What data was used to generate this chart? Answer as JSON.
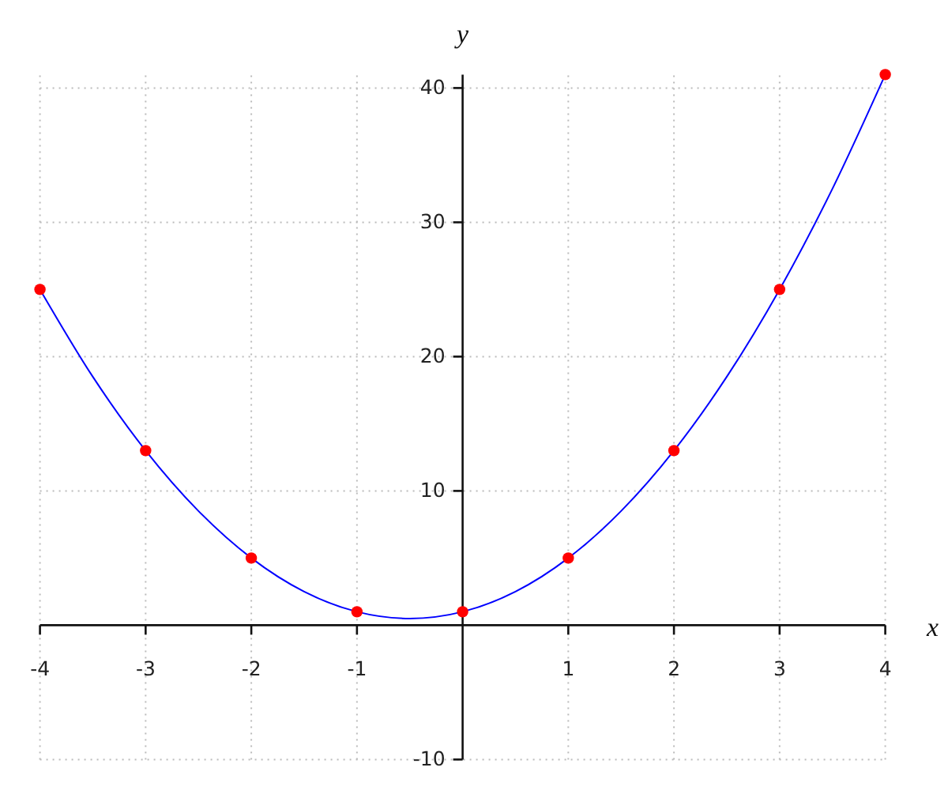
{
  "chart_data": {
    "type": "line",
    "xlabel": "x",
    "ylabel": "y",
    "xlim": [
      -4,
      4
    ],
    "ylim": [
      -10,
      41
    ],
    "xticks": [
      -4,
      -3,
      -2,
      -1,
      1,
      2,
      3,
      4
    ],
    "yticks": [
      -10,
      10,
      20,
      30,
      40
    ],
    "grid": true,
    "series": [
      {
        "color": "#0000ff",
        "x": [
          -4,
          -3.5,
          -3,
          -2.5,
          -2,
          -1.5,
          -1,
          -0.5,
          0,
          0.5,
          1,
          1.5,
          2,
          2.5,
          3,
          3.5,
          4
        ],
        "values": [
          25,
          18.5,
          13,
          8.5,
          5,
          2.5,
          1,
          0.5,
          1,
          2.5,
          5,
          8.5,
          13,
          18.5,
          25,
          32.5,
          41
        ]
      },
      {
        "type": "scatter",
        "color": "#ff0000",
        "marker": "circle",
        "x": [
          -4,
          -3,
          -2,
          -1,
          0,
          1,
          2,
          3,
          4
        ],
        "values": [
          25,
          13,
          5,
          1,
          1,
          5,
          13,
          25,
          41
        ]
      }
    ]
  }
}
